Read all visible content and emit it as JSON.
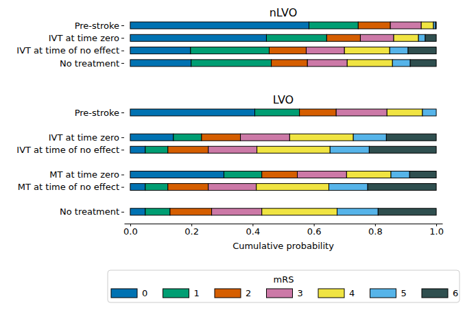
{
  "chart_data": [
    {
      "type": "bar",
      "orientation": "horizontal",
      "stacked": true,
      "title": "nLVO",
      "tick_labels": "y",
      "categories": [
        "Pre-stroke",
        "IVT at time zero",
        "IVT at time of no effect",
        "No treatment"
      ],
      "series": [
        {
          "name": "0",
          "color": "#0072B2",
          "values": [
            0.584,
            0.445,
            0.197,
            0.199
          ]
        },
        {
          "name": "1",
          "color": "#009E73",
          "values": [
            0.161,
            0.197,
            0.257,
            0.262
          ]
        },
        {
          "name": "2",
          "color": "#D55E00",
          "values": [
            0.105,
            0.11,
            0.121,
            0.118
          ]
        },
        {
          "name": "3",
          "color": "#CC79A7",
          "values": [
            0.101,
            0.109,
            0.125,
            0.13
          ]
        },
        {
          "name": "4",
          "color": "#F0E442",
          "values": [
            0.04,
            0.081,
            0.148,
            0.148
          ]
        },
        {
          "name": "5",
          "color": "#56B4E9",
          "values": [
            0.007,
            0.022,
            0.06,
            0.058
          ]
        },
        {
          "name": "6",
          "color": "#2F4F4F",
          "values": [
            0.002,
            0.036,
            0.092,
            0.085
          ]
        }
      ]
    },
    {
      "type": "bar",
      "orientation": "horizontal",
      "stacked": true,
      "title": "LVO",
      "x_label": "Cumulative probability",
      "legend": "bottom",
      "legend_title": "mRS",
      "categories": [
        "Pre-stroke",
        "IVT at time zero",
        "IVT at time of no effect",
        "MT at time zero",
        "MT at time of no effect",
        "No treatment"
      ],
      "xlim": [
        -0.02,
        1.02
      ],
      "xticks": [
        {
          "value": 0,
          "label": "0.0"
        },
        0.2,
        0.4,
        0.6,
        0.8,
        {
          "value": 1,
          "label": "1.0"
        }
      ],
      "series": [
        {
          "name": "0",
          "color": "#0072B2",
          "values": [
            0.407,
            0.141,
            0.049,
            0.306,
            0.049,
            0.049
          ]
        },
        {
          "name": "1",
          "color": "#009E73",
          "values": [
            0.146,
            0.092,
            0.074,
            0.124,
            0.074,
            0.081
          ]
        },
        {
          "name": "2",
          "color": "#D55E00",
          "values": [
            0.12,
            0.127,
            0.132,
            0.116,
            0.132,
            0.136
          ]
        },
        {
          "name": "3",
          "color": "#CC79A7",
          "values": [
            0.166,
            0.161,
            0.159,
            0.161,
            0.157,
            0.164
          ]
        },
        {
          "name": "4",
          "color": "#F0E442",
          "values": [
            0.116,
            0.208,
            0.239,
            0.145,
            0.237,
            0.246
          ]
        },
        {
          "name": "5",
          "color": "#56B4E9",
          "values": [
            0.045,
            0.108,
            0.128,
            0.061,
            0.127,
            0.134
          ]
        },
        {
          "name": "6",
          "color": "#2F4F4F",
          "values": [
            0.0,
            0.163,
            0.219,
            0.087,
            0.224,
            0.19
          ]
        }
      ]
    }
  ]
}
